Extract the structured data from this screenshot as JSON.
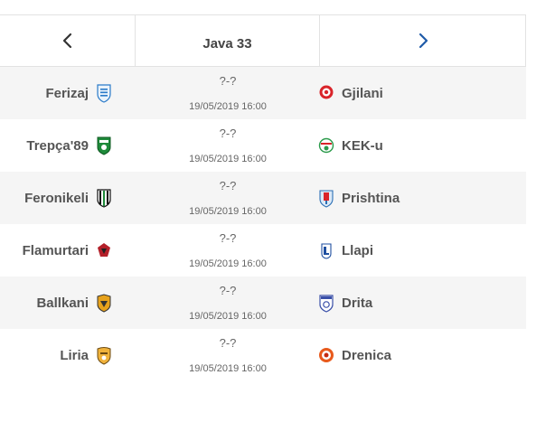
{
  "nav": {
    "prev_icon": "chevron-left-icon",
    "title": "Java 33",
    "next_icon": "chevron-right-icon"
  },
  "matches": [
    {
      "home": "Ferizaj",
      "home_icon": "ferizaj-crest-icon",
      "score": "?-?",
      "date": "19/05/2019 16:00",
      "away": "Gjilani",
      "away_icon": "gjilani-crest-icon"
    },
    {
      "home": "Trepça'89",
      "home_icon": "trepca-crest-icon",
      "score": "?-?",
      "date": "19/05/2019 16:00",
      "away": "KEK-u",
      "away_icon": "keku-crest-icon"
    },
    {
      "home": "Feronikeli",
      "home_icon": "feronikeli-crest-icon",
      "score": "?-?",
      "date": "19/05/2019 16:00",
      "away": "Prishtina",
      "away_icon": "prishtina-crest-icon"
    },
    {
      "home": "Flamurtari",
      "home_icon": "flamurtari-crest-icon",
      "score": "?-?",
      "date": "19/05/2019 16:00",
      "away": "Llapi",
      "away_icon": "llapi-crest-icon"
    },
    {
      "home": "Ballkani",
      "home_icon": "ballkani-crest-icon",
      "score": "?-?",
      "date": "19/05/2019 16:00",
      "away": "Drita",
      "away_icon": "drita-crest-icon"
    },
    {
      "home": "Liria",
      "home_icon": "liria-crest-icon",
      "score": "?-?",
      "date": "19/05/2019 16:00",
      "away": "Drenica",
      "away_icon": "drenica-crest-icon"
    }
  ]
}
